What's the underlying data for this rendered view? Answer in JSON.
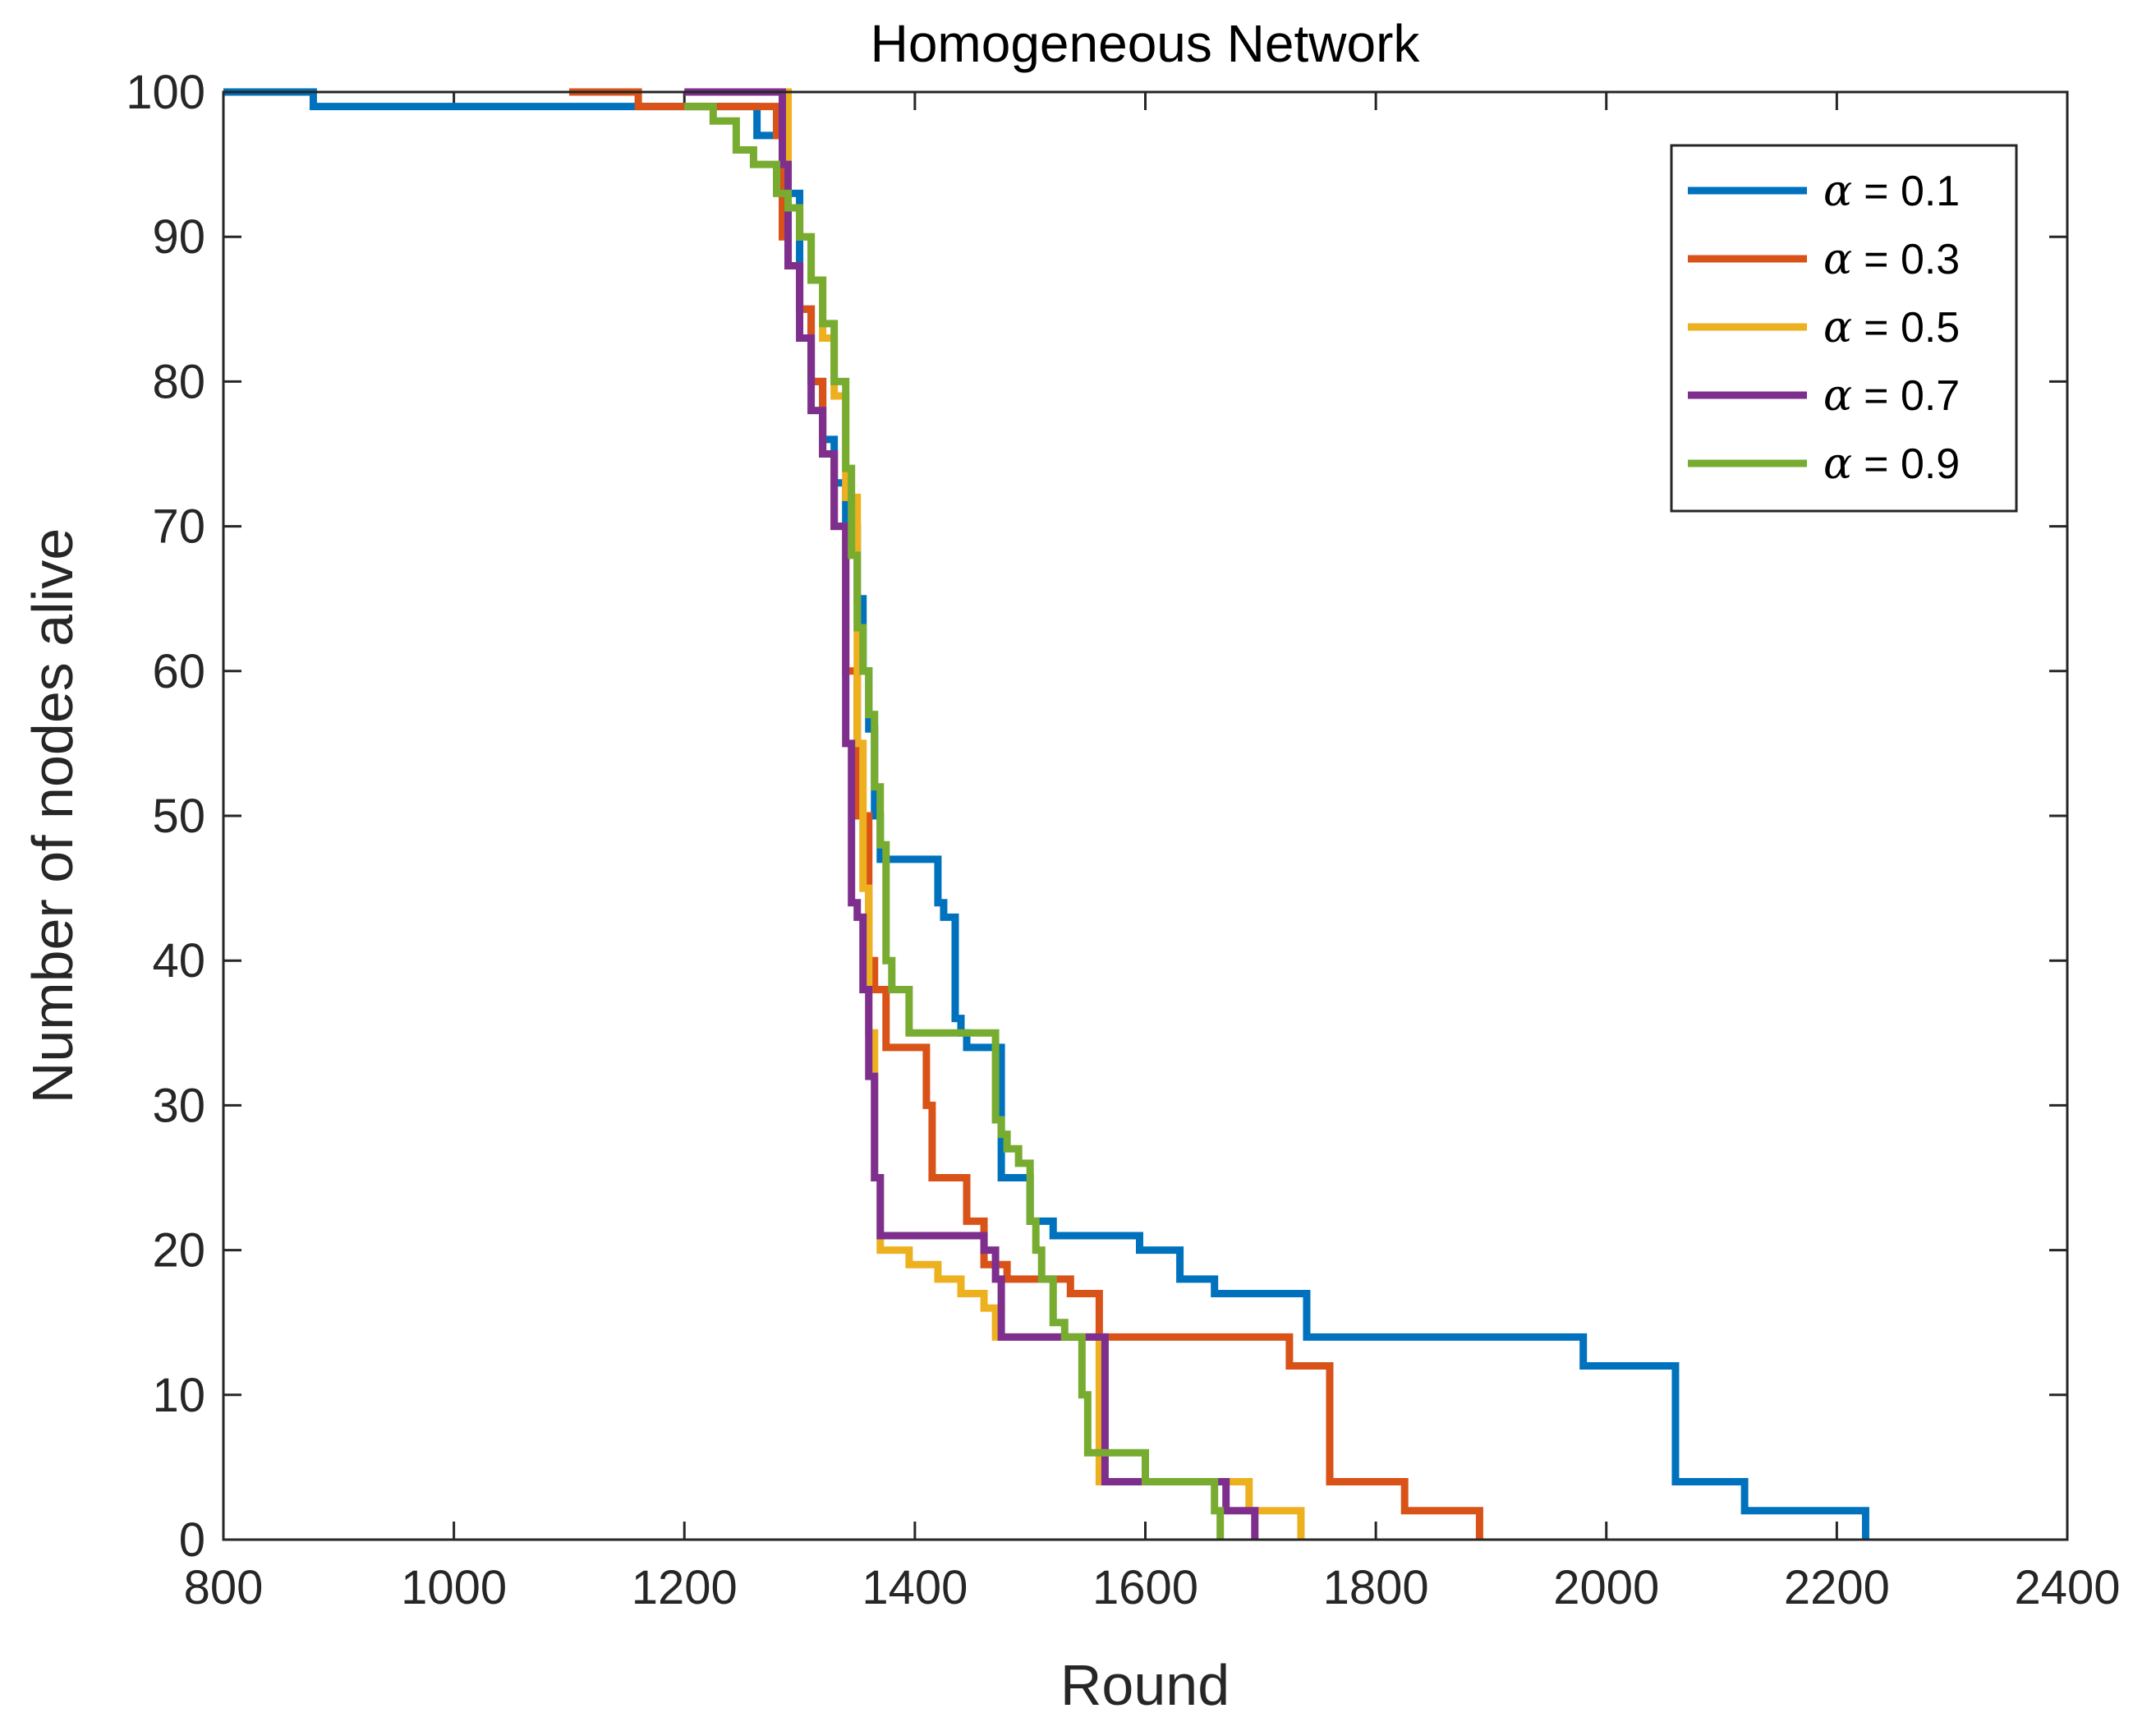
{
  "chart_data": {
    "type": "line",
    "step": true,
    "title": "Homogeneous Network",
    "xlabel": "Round",
    "ylabel": "Number of nodes alive",
    "xlim": [
      800,
      2400
    ],
    "ylim": [
      0,
      100
    ],
    "xticks": [
      800,
      1000,
      1200,
      1400,
      1600,
      1800,
      2000,
      2200,
      2400
    ],
    "yticks": [
      0,
      10,
      20,
      30,
      40,
      50,
      60,
      70,
      80,
      90,
      100
    ],
    "legend_position": "top-right",
    "series": [
      {
        "name": "α = 0.1",
        "alpha_symbol": "α",
        "alpha_value": "= 0.1",
        "color": "#0072BD",
        "x": [
          800,
          878,
          1263,
          1285,
          1300,
          1310,
          1320,
          1330,
          1340,
          1350,
          1355,
          1360,
          1365,
          1370,
          1420,
          1425,
          1435,
          1440,
          1445,
          1455,
          1475,
          1480,
          1500,
          1505,
          1510,
          1520,
          1530,
          1560,
          1595,
          1630,
          1640,
          1660,
          1740,
          1745,
          1980,
          1985,
          2060,
          2065,
          2120,
          2125,
          2225
        ],
        "y": [
          100,
          99,
          97,
          93,
          85,
          80,
          76,
          73,
          70,
          65,
          60,
          56,
          50,
          47,
          44,
          43,
          36,
          35,
          34,
          34,
          25,
          25,
          22,
          22,
          22,
          21,
          21,
          21,
          20,
          18,
          18,
          17,
          14,
          14,
          12,
          12,
          4,
          4,
          2,
          2,
          0
        ]
      },
      {
        "name": "α = 0.3",
        "alpha_symbol": "α",
        "alpha_value": "= 0.3",
        "color": "#D95319",
        "x": [
          1100,
          1160,
          1280,
          1285,
          1290,
          1300,
          1310,
          1320,
          1330,
          1340,
          1350,
          1360,
          1365,
          1375,
          1410,
          1415,
          1445,
          1460,
          1480,
          1535,
          1560,
          1565,
          1725,
          1730,
          1760,
          1765,
          1825,
          1830,
          1890
        ],
        "y": [
          100,
          99,
          97,
          90,
          88,
          85,
          80,
          75,
          70,
          60,
          50,
          40,
          38,
          34,
          30,
          25,
          22,
          19,
          18,
          17,
          14,
          14,
          12,
          12,
          4,
          4,
          2,
          2,
          0
        ]
      },
      {
        "name": "α = 0.5",
        "alpha_symbol": "α",
        "alpha_value": "= 0.5",
        "color": "#EDB120",
        "x": [
          1205,
          1290,
          1300,
          1310,
          1320,
          1330,
          1340,
          1350,
          1355,
          1360,
          1365,
          1370,
          1395,
          1420,
          1440,
          1460,
          1470,
          1555,
          1560,
          1675,
          1680,
          1690,
          1700,
          1735
        ],
        "y": [
          100,
          92,
          90,
          87,
          83,
          79,
          72,
          55,
          45,
          35,
          25,
          20,
          19,
          18,
          17,
          16,
          14,
          14,
          4,
          4,
          4,
          2,
          2,
          0
        ]
      },
      {
        "name": "α = 0.7",
        "alpha_symbol": "α",
        "alpha_value": "= 0.7",
        "color": "#7E2F8E",
        "x": [
          1200,
          1285,
          1290,
          1300,
          1310,
          1320,
          1330,
          1340,
          1345,
          1350,
          1355,
          1360,
          1365,
          1370,
          1450,
          1460,
          1470,
          1475,
          1560,
          1565,
          1665,
          1670,
          1695
        ],
        "y": [
          100,
          95,
          88,
          83,
          78,
          75,
          70,
          55,
          44,
          43,
          38,
          32,
          25,
          21,
          21,
          20,
          18,
          14,
          14,
          4,
          4,
          2,
          0
        ]
      },
      {
        "name": "α = 0.9",
        "alpha_symbol": "α",
        "alpha_value": "= 0.9",
        "color": "#77AC30",
        "x": [
          1200,
          1225,
          1245,
          1260,
          1280,
          1290,
          1300,
          1310,
          1320,
          1330,
          1340,
          1345,
          1350,
          1355,
          1360,
          1365,
          1370,
          1375,
          1380,
          1385,
          1395,
          1420,
          1430,
          1470,
          1475,
          1480,
          1490,
          1500,
          1505,
          1510,
          1520,
          1530,
          1545,
          1550,
          1600,
          1605,
          1660,
          1665
        ],
        "y": [
          99,
          98,
          96,
          95,
          93,
          92,
          90,
          87,
          84,
          80,
          74,
          68,
          63,
          60,
          57,
          52,
          48,
          40,
          38,
          38,
          35,
          35,
          35,
          29,
          28,
          27,
          26,
          22,
          20,
          18,
          15,
          14,
          10,
          6,
          4,
          4,
          2,
          0
        ]
      }
    ]
  }
}
